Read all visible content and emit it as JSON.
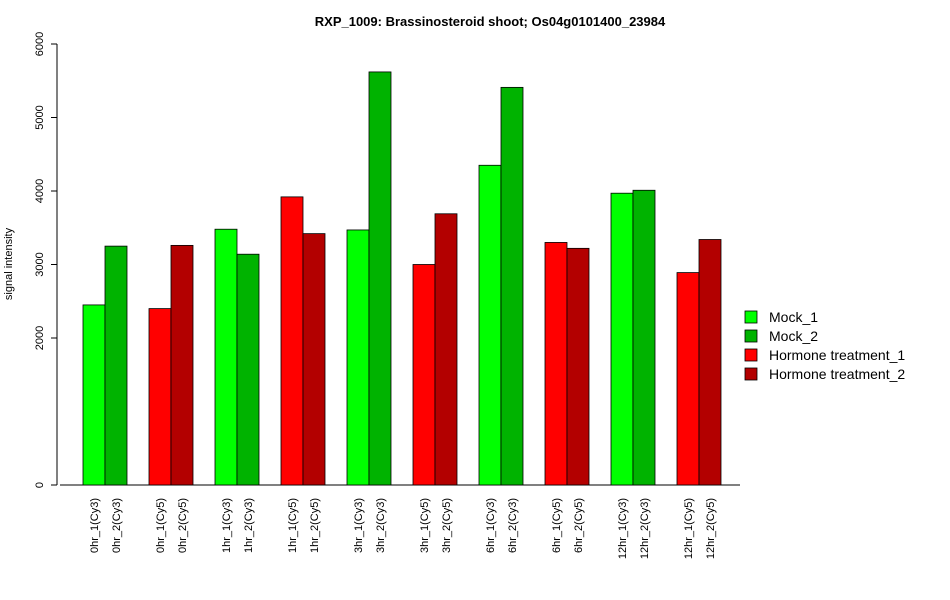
{
  "chart_data": {
    "type": "bar",
    "title": "RXP_1009: Brassinosteroid shoot; Os04g0101400_23984",
    "xlabel": "",
    "ylabel": "signal intensity",
    "yticks": [
      0,
      2000,
      3000,
      4000,
      5000,
      6000
    ],
    "ylim": [
      0,
      6000
    ],
    "legend_position": "right",
    "series": [
      {
        "name": "Mock_1",
        "color": "#00ff00"
      },
      {
        "name": "Mock_2",
        "color": "#00b300"
      },
      {
        "name": "Hormone treatment_1",
        "color": "#ff0000"
      },
      {
        "name": "Hormone treatment_2",
        "color": "#b30000"
      }
    ],
    "bars": [
      {
        "label": "0hr_1(Cy3)",
        "value": 2450,
        "series": 0
      },
      {
        "label": "0hr_2(Cy3)",
        "value": 3250,
        "series": 1
      },
      {
        "label": "0hr_1(Cy5)",
        "value": 2400,
        "series": 2
      },
      {
        "label": "0hr_2(Cy5)",
        "value": 3260,
        "series": 3
      },
      {
        "label": "1hr_1(Cy3)",
        "value": 3480,
        "series": 0
      },
      {
        "label": "1hr_2(Cy3)",
        "value": 3140,
        "series": 1
      },
      {
        "label": "1hr_1(Cy5)",
        "value": 3920,
        "series": 2
      },
      {
        "label": "1hr_2(Cy5)",
        "value": 3420,
        "series": 3
      },
      {
        "label": "3hr_1(Cy3)",
        "value": 3470,
        "series": 0
      },
      {
        "label": "3hr_2(Cy3)",
        "value": 5620,
        "series": 1
      },
      {
        "label": "3hr_1(Cy5)",
        "value": 3000,
        "series": 2
      },
      {
        "label": "3hr_2(Cy5)",
        "value": 3690,
        "series": 3
      },
      {
        "label": "6hr_1(Cy3)",
        "value": 4350,
        "series": 0
      },
      {
        "label": "6hr_2(Cy3)",
        "value": 5410,
        "series": 1
      },
      {
        "label": "6hr_1(Cy5)",
        "value": 3300,
        "series": 2
      },
      {
        "label": "6hr_2(Cy5)",
        "value": 3220,
        "series": 3
      },
      {
        "label": "12hr_1(Cy3)",
        "value": 3970,
        "series": 0
      },
      {
        "label": "12hr_2(Cy3)",
        "value": 4010,
        "series": 1
      },
      {
        "label": "12hr_1(Cy5)",
        "value": 2890,
        "series": 2
      },
      {
        "label": "12hr_2(Cy5)",
        "value": 3340,
        "series": 3
      }
    ]
  }
}
